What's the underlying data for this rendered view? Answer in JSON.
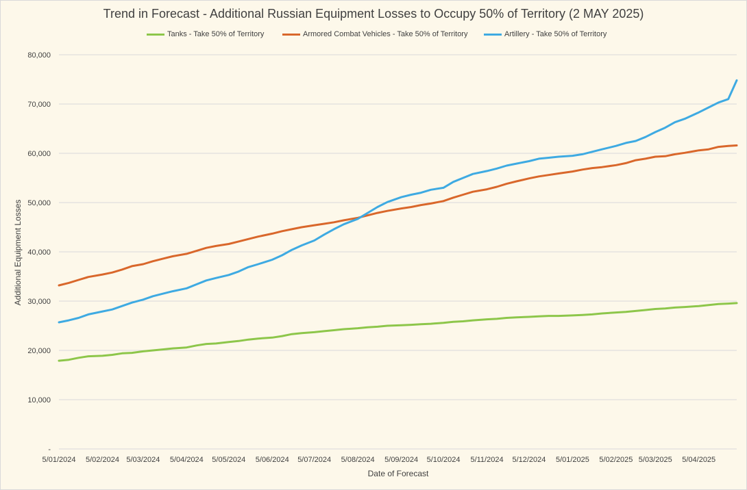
{
  "chart_data": {
    "type": "line",
    "title": "Trend in Forecast - Additional Russian Equipment Losses to Occupy 50% of Territory (2 MAY 2025)",
    "xlabel": "Date of Forecast",
    "ylabel": "Additional Equipment Losses",
    "ylim": [
      0,
      80000
    ],
    "yticks": [
      "-",
      "10,000",
      "20,000",
      "30,000",
      "40,000",
      "50,000",
      "60,000",
      "70,000",
      "80,000"
    ],
    "xlim": [
      "2024-01-05",
      "2025-05-02"
    ],
    "xticks": [
      {
        "date": "2024-01-05",
        "label": "5/01/2024"
      },
      {
        "date": "2024-02-05",
        "label": "5/02/2024"
      },
      {
        "date": "2024-03-05",
        "label": "5/03/2024"
      },
      {
        "date": "2024-04-05",
        "label": "5/04/2024"
      },
      {
        "date": "2024-05-05",
        "label": "5/05/2024"
      },
      {
        "date": "2024-06-05",
        "label": "5/06/2024"
      },
      {
        "date": "2024-07-05",
        "label": "5/07/2024"
      },
      {
        "date": "2024-08-05",
        "label": "5/08/2024"
      },
      {
        "date": "2024-09-05",
        "label": "5/09/2024"
      },
      {
        "date": "2024-10-05",
        "label": "5/10/2024"
      },
      {
        "date": "2024-11-05",
        "label": "5/11/2024"
      },
      {
        "date": "2024-12-05",
        "label": "5/12/2024"
      },
      {
        "date": "2025-01-05",
        "label": "5/01/2025"
      },
      {
        "date": "2025-02-05",
        "label": "5/02/2025"
      },
      {
        "date": "2025-03-05",
        "label": "5/03/2025"
      },
      {
        "date": "2025-04-05",
        "label": "5/04/2025"
      }
    ],
    "grid": true,
    "legend": "top",
    "series": [
      {
        "name": "Tanks - Take 50% of Territory",
        "color": "#8dc64a",
        "points": [
          [
            "2024-01-05",
            17900
          ],
          [
            "2024-01-12",
            18100
          ],
          [
            "2024-01-19",
            18500
          ],
          [
            "2024-01-26",
            18800
          ],
          [
            "2024-02-05",
            18900
          ],
          [
            "2024-02-12",
            19100
          ],
          [
            "2024-02-19",
            19400
          ],
          [
            "2024-02-26",
            19500
          ],
          [
            "2024-03-05",
            19800
          ],
          [
            "2024-03-12",
            20000
          ],
          [
            "2024-03-19",
            20200
          ],
          [
            "2024-03-26",
            20400
          ],
          [
            "2024-04-05",
            20600
          ],
          [
            "2024-04-12",
            21000
          ],
          [
            "2024-04-19",
            21300
          ],
          [
            "2024-04-26",
            21400
          ],
          [
            "2024-05-05",
            21700
          ],
          [
            "2024-05-12",
            21900
          ],
          [
            "2024-05-19",
            22200
          ],
          [
            "2024-05-26",
            22400
          ],
          [
            "2024-06-05",
            22600
          ],
          [
            "2024-06-12",
            22900
          ],
          [
            "2024-06-19",
            23300
          ],
          [
            "2024-06-26",
            23500
          ],
          [
            "2024-07-05",
            23700
          ],
          [
            "2024-07-12",
            23900
          ],
          [
            "2024-07-19",
            24100
          ],
          [
            "2024-07-26",
            24300
          ],
          [
            "2024-08-05",
            24500
          ],
          [
            "2024-08-12",
            24700
          ],
          [
            "2024-08-19",
            24800
          ],
          [
            "2024-08-26",
            25000
          ],
          [
            "2024-09-05",
            25100
          ],
          [
            "2024-09-12",
            25200
          ],
          [
            "2024-09-19",
            25300
          ],
          [
            "2024-09-26",
            25400
          ],
          [
            "2024-10-05",
            25600
          ],
          [
            "2024-10-12",
            25800
          ],
          [
            "2024-10-19",
            25900
          ],
          [
            "2024-10-26",
            26100
          ],
          [
            "2024-11-05",
            26300
          ],
          [
            "2024-11-12",
            26400
          ],
          [
            "2024-11-19",
            26600
          ],
          [
            "2024-11-26",
            26700
          ],
          [
            "2024-12-05",
            26800
          ],
          [
            "2024-12-12",
            26900
          ],
          [
            "2024-12-19",
            27000
          ],
          [
            "2024-12-26",
            27000
          ],
          [
            "2025-01-05",
            27100
          ],
          [
            "2025-01-12",
            27200
          ],
          [
            "2025-01-19",
            27300
          ],
          [
            "2025-01-26",
            27500
          ],
          [
            "2025-02-05",
            27700
          ],
          [
            "2025-02-12",
            27800
          ],
          [
            "2025-02-19",
            28000
          ],
          [
            "2025-02-26",
            28200
          ],
          [
            "2025-03-05",
            28400
          ],
          [
            "2025-03-12",
            28500
          ],
          [
            "2025-03-19",
            28700
          ],
          [
            "2025-03-26",
            28800
          ],
          [
            "2025-04-05",
            29000
          ],
          [
            "2025-04-12",
            29200
          ],
          [
            "2025-04-19",
            29400
          ],
          [
            "2025-04-26",
            29500
          ],
          [
            "2025-05-02",
            29600
          ]
        ]
      },
      {
        "name": "Armored Combat Vehicles - Take 50% of Territory",
        "color": "#d9672b",
        "points": [
          [
            "2024-01-05",
            33200
          ],
          [
            "2024-01-12",
            33700
          ],
          [
            "2024-01-19",
            34300
          ],
          [
            "2024-01-26",
            34900
          ],
          [
            "2024-02-05",
            35400
          ],
          [
            "2024-02-12",
            35800
          ],
          [
            "2024-02-19",
            36400
          ],
          [
            "2024-02-26",
            37100
          ],
          [
            "2024-03-05",
            37500
          ],
          [
            "2024-03-12",
            38100
          ],
          [
            "2024-03-19",
            38600
          ],
          [
            "2024-03-26",
            39100
          ],
          [
            "2024-04-05",
            39600
          ],
          [
            "2024-04-12",
            40200
          ],
          [
            "2024-04-19",
            40800
          ],
          [
            "2024-04-26",
            41200
          ],
          [
            "2024-05-05",
            41600
          ],
          [
            "2024-05-12",
            42100
          ],
          [
            "2024-05-19",
            42600
          ],
          [
            "2024-05-26",
            43100
          ],
          [
            "2024-06-05",
            43700
          ],
          [
            "2024-06-12",
            44200
          ],
          [
            "2024-06-19",
            44600
          ],
          [
            "2024-06-26",
            45000
          ],
          [
            "2024-07-05",
            45400
          ],
          [
            "2024-07-12",
            45700
          ],
          [
            "2024-07-19",
            46000
          ],
          [
            "2024-07-26",
            46400
          ],
          [
            "2024-08-05",
            46900
          ],
          [
            "2024-08-12",
            47400
          ],
          [
            "2024-08-19",
            47900
          ],
          [
            "2024-08-26",
            48300
          ],
          [
            "2024-09-05",
            48800
          ],
          [
            "2024-09-12",
            49100
          ],
          [
            "2024-09-19",
            49500
          ],
          [
            "2024-09-26",
            49800
          ],
          [
            "2024-10-05",
            50300
          ],
          [
            "2024-10-12",
            51000
          ],
          [
            "2024-10-19",
            51600
          ],
          [
            "2024-10-26",
            52200
          ],
          [
            "2024-11-05",
            52700
          ],
          [
            "2024-11-12",
            53200
          ],
          [
            "2024-11-19",
            53800
          ],
          [
            "2024-11-26",
            54300
          ],
          [
            "2024-12-05",
            54900
          ],
          [
            "2024-12-12",
            55300
          ],
          [
            "2024-12-19",
            55600
          ],
          [
            "2024-12-26",
            55900
          ],
          [
            "2025-01-05",
            56300
          ],
          [
            "2025-01-12",
            56700
          ],
          [
            "2025-01-19",
            57000
          ],
          [
            "2025-01-26",
            57200
          ],
          [
            "2025-02-05",
            57600
          ],
          [
            "2025-02-12",
            58000
          ],
          [
            "2025-02-19",
            58600
          ],
          [
            "2025-02-26",
            58900
          ],
          [
            "2025-03-05",
            59300
          ],
          [
            "2025-03-12",
            59400
          ],
          [
            "2025-03-19",
            59800
          ],
          [
            "2025-03-26",
            60100
          ],
          [
            "2025-04-05",
            60600
          ],
          [
            "2025-04-12",
            60800
          ],
          [
            "2025-04-19",
            61300
          ],
          [
            "2025-04-26",
            61500
          ],
          [
            "2025-05-02",
            61600
          ]
        ]
      },
      {
        "name": "Artillery - Take 50% of Territory",
        "color": "#3eaae2",
        "points": [
          [
            "2024-01-05",
            25700
          ],
          [
            "2024-01-12",
            26100
          ],
          [
            "2024-01-19",
            26600
          ],
          [
            "2024-01-26",
            27300
          ],
          [
            "2024-02-05",
            27900
          ],
          [
            "2024-02-12",
            28300
          ],
          [
            "2024-02-19",
            29000
          ],
          [
            "2024-02-26",
            29700
          ],
          [
            "2024-03-05",
            30300
          ],
          [
            "2024-03-12",
            31000
          ],
          [
            "2024-03-19",
            31500
          ],
          [
            "2024-03-26",
            32000
          ],
          [
            "2024-04-05",
            32600
          ],
          [
            "2024-04-12",
            33400
          ],
          [
            "2024-04-19",
            34200
          ],
          [
            "2024-04-26",
            34700
          ],
          [
            "2024-05-05",
            35300
          ],
          [
            "2024-05-12",
            36000
          ],
          [
            "2024-05-19",
            36900
          ],
          [
            "2024-05-26",
            37500
          ],
          [
            "2024-06-05",
            38400
          ],
          [
            "2024-06-12",
            39300
          ],
          [
            "2024-06-19",
            40400
          ],
          [
            "2024-06-26",
            41300
          ],
          [
            "2024-07-05",
            42300
          ],
          [
            "2024-07-12",
            43500
          ],
          [
            "2024-07-19",
            44600
          ],
          [
            "2024-07-26",
            45600
          ],
          [
            "2024-08-05",
            46700
          ],
          [
            "2024-08-12",
            47900
          ],
          [
            "2024-08-19",
            49100
          ],
          [
            "2024-08-26",
            50100
          ],
          [
            "2024-09-05",
            51100
          ],
          [
            "2024-09-12",
            51600
          ],
          [
            "2024-09-19",
            52000
          ],
          [
            "2024-09-26",
            52600
          ],
          [
            "2024-10-05",
            53000
          ],
          [
            "2024-10-12",
            54200
          ],
          [
            "2024-10-19",
            55000
          ],
          [
            "2024-10-26",
            55800
          ],
          [
            "2024-11-05",
            56400
          ],
          [
            "2024-11-12",
            56900
          ],
          [
            "2024-11-19",
            57500
          ],
          [
            "2024-11-26",
            57900
          ],
          [
            "2024-12-05",
            58400
          ],
          [
            "2024-12-12",
            58900
          ],
          [
            "2024-12-19",
            59100
          ],
          [
            "2024-12-26",
            59300
          ],
          [
            "2025-01-05",
            59500
          ],
          [
            "2025-01-12",
            59800
          ],
          [
            "2025-01-19",
            60300
          ],
          [
            "2025-01-26",
            60800
          ],
          [
            "2025-02-05",
            61500
          ],
          [
            "2025-02-12",
            62100
          ],
          [
            "2025-02-19",
            62500
          ],
          [
            "2025-02-26",
            63300
          ],
          [
            "2025-03-05",
            64300
          ],
          [
            "2025-03-12",
            65200
          ],
          [
            "2025-03-19",
            66300
          ],
          [
            "2025-03-26",
            67000
          ],
          [
            "2025-04-05",
            68300
          ],
          [
            "2025-04-12",
            69300
          ],
          [
            "2025-04-19",
            70300
          ],
          [
            "2025-04-26",
            71000
          ],
          [
            "2025-05-02",
            74800
          ]
        ]
      }
    ]
  },
  "colors": {
    "background": "#fdf8ea",
    "gridline": "#d9d9d9",
    "text": "#404040"
  }
}
